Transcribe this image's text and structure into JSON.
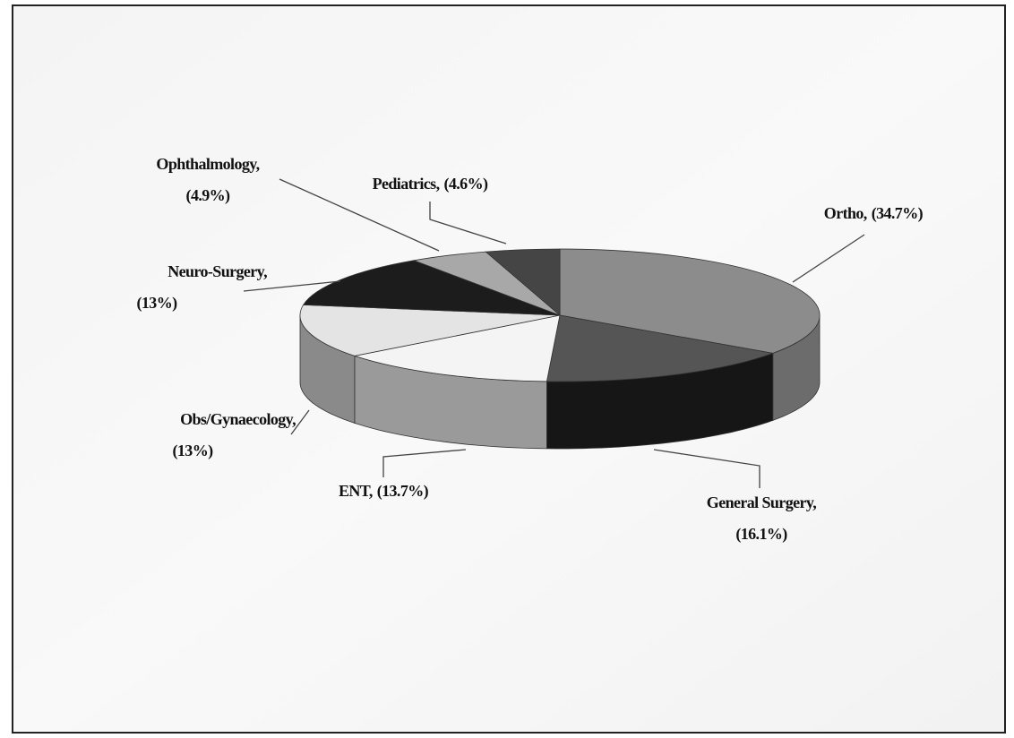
{
  "chart_data": {
    "type": "pie",
    "categories": [
      "Ortho,",
      "General Surgery,",
      "ENT,",
      "Obs/Gynaecology,",
      "Neuro-Surgery,",
      "Ophthalmology,",
      "Pediatrics,"
    ],
    "values": [
      34.7,
      16.1,
      13.7,
      13,
      13,
      4.9,
      4.6
    ],
    "value_labels": [
      "(34.7%)",
      "(16.1%)",
      "(13.7%)",
      "(13%)",
      "(13%)",
      "(4.9%)",
      "(4.6%)"
    ],
    "colors": [
      "#8c8c8c",
      "#555555",
      "#f4f4f4",
      "#e4e4e4",
      "#1c1c1c",
      "#a8a8a8",
      "#454545"
    ],
    "side_colors": [
      "#6c6c6c",
      "#161616",
      "#9a9a9a",
      "#8a8a8a",
      "#101010",
      "#808080",
      "#303030"
    ]
  }
}
